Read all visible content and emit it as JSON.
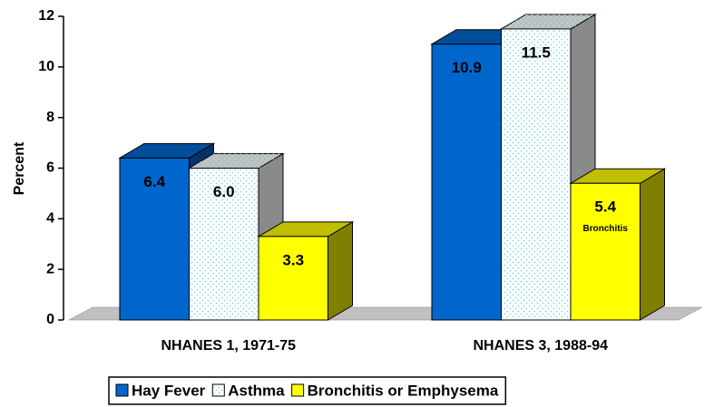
{
  "chart_data": {
    "type": "bar3d",
    "ylabel": "Percent",
    "categories": [
      "NHANES 1, 1971-75",
      "NHANES 3, 1988-94"
    ],
    "series": [
      {
        "name": "Hay Fever",
        "color": "#0066cc",
        "values": [
          6.4,
          10.9
        ],
        "value_labels": [
          "6.4",
          "10.9"
        ]
      },
      {
        "name": "Asthma",
        "color": "#ffffff",
        "values": [
          6.0,
          11.5
        ],
        "value_labels": [
          "6.0",
          "11.5"
        ]
      },
      {
        "name": "Bronchitis or Emphysema",
        "color": "#ffff00",
        "values": [
          3.3,
          5.4
        ],
        "value_labels": [
          "3.3",
          "5.4"
        ]
      }
    ],
    "annotation": "Bronchitis",
    "ylim": [
      0,
      12
    ],
    "yticks": [
      0,
      2,
      4,
      6,
      8,
      10,
      12
    ],
    "grid": false,
    "legend": "bottom"
  }
}
